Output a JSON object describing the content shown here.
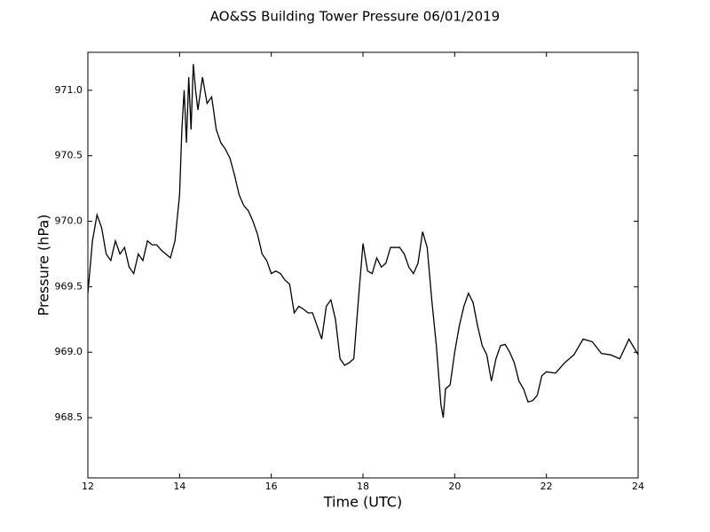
{
  "chart_data": {
    "type": "line",
    "title": "AO&SS Building Tower Pressure 06/01/2019",
    "xlabel": "Time (UTC)",
    "ylabel": "Pressure (hPa)",
    "x": [
      12.0,
      12.1,
      12.2,
      12.3,
      12.4,
      12.5,
      12.6,
      12.7,
      12.8,
      12.9,
      13.0,
      13.1,
      13.2,
      13.3,
      13.4,
      13.5,
      13.6,
      13.7,
      13.8,
      13.9,
      14.0,
      14.05,
      14.1,
      14.15,
      14.2,
      14.25,
      14.3,
      14.35,
      14.4,
      14.5,
      14.6,
      14.7,
      14.8,
      14.9,
      15.0,
      15.1,
      15.2,
      15.3,
      15.4,
      15.5,
      15.6,
      15.7,
      15.8,
      15.9,
      16.0,
      16.1,
      16.2,
      16.3,
      16.4,
      16.5,
      16.6,
      16.7,
      16.8,
      16.9,
      17.0,
      17.1,
      17.2,
      17.3,
      17.4,
      17.5,
      17.6,
      17.7,
      17.8,
      17.9,
      18.0,
      18.1,
      18.2,
      18.3,
      18.4,
      18.5,
      18.6,
      18.7,
      18.8,
      18.9,
      19.0,
      19.1,
      19.2,
      19.3,
      19.4,
      19.5,
      19.6,
      19.7,
      19.75,
      19.8,
      19.9,
      20.0,
      20.1,
      20.2,
      20.3,
      20.4,
      20.5,
      20.6,
      20.7,
      20.8,
      20.9,
      21.0,
      21.1,
      21.2,
      21.3,
      21.4,
      21.5,
      21.6,
      21.7,
      21.8,
      21.9,
      22.0,
      22.2,
      22.4,
      22.6,
      22.8,
      23.0,
      23.2,
      23.4,
      23.6,
      23.8,
      24.0
    ],
    "series": [
      {
        "name": "Pressure",
        "color": "#000000",
        "values": [
          969.45,
          969.85,
          970.05,
          969.95,
          969.75,
          969.7,
          969.85,
          969.75,
          969.8,
          969.65,
          969.6,
          969.75,
          969.7,
          969.85,
          969.82,
          969.82,
          969.78,
          969.75,
          969.72,
          969.85,
          970.2,
          970.7,
          971.0,
          970.6,
          971.1,
          970.7,
          971.2,
          971.0,
          970.85,
          971.1,
          970.9,
          970.95,
          970.7,
          970.6,
          970.55,
          970.48,
          970.35,
          970.2,
          970.12,
          970.08,
          970.0,
          969.9,
          969.75,
          969.7,
          969.6,
          969.62,
          969.6,
          969.55,
          969.52,
          969.3,
          969.35,
          969.33,
          969.3,
          969.3,
          969.2,
          969.1,
          969.35,
          969.4,
          969.25,
          968.95,
          968.9,
          968.92,
          968.95,
          969.4,
          969.83,
          969.62,
          969.6,
          969.72,
          969.65,
          969.68,
          969.8,
          969.8,
          969.8,
          969.75,
          969.65,
          969.6,
          969.68,
          969.92,
          969.8,
          969.4,
          969.05,
          968.6,
          968.5,
          968.72,
          968.75,
          969.0,
          969.2,
          969.35,
          969.45,
          969.38,
          969.2,
          969.05,
          968.98,
          968.78,
          968.95,
          969.05,
          969.06,
          969.0,
          968.92,
          968.78,
          968.72,
          968.62,
          968.63,
          968.67,
          968.82,
          968.85,
          968.84,
          968.92,
          968.98,
          969.1,
          969.08,
          968.99,
          968.98,
          968.95,
          969.1,
          968.98
        ]
      }
    ],
    "xlim": [
      12,
      24
    ],
    "xticks": [
      12,
      14,
      16,
      18,
      20,
      22,
      24
    ],
    "ylim": [
      968.04,
      971.29
    ],
    "yticks": [
      968.5,
      {
        "value": 969,
        "label": "969.0"
      },
      969.5,
      {
        "value": 970,
        "label": "970.0"
      },
      970.5,
      {
        "value": 971,
        "label": "971.0"
      }
    ]
  }
}
